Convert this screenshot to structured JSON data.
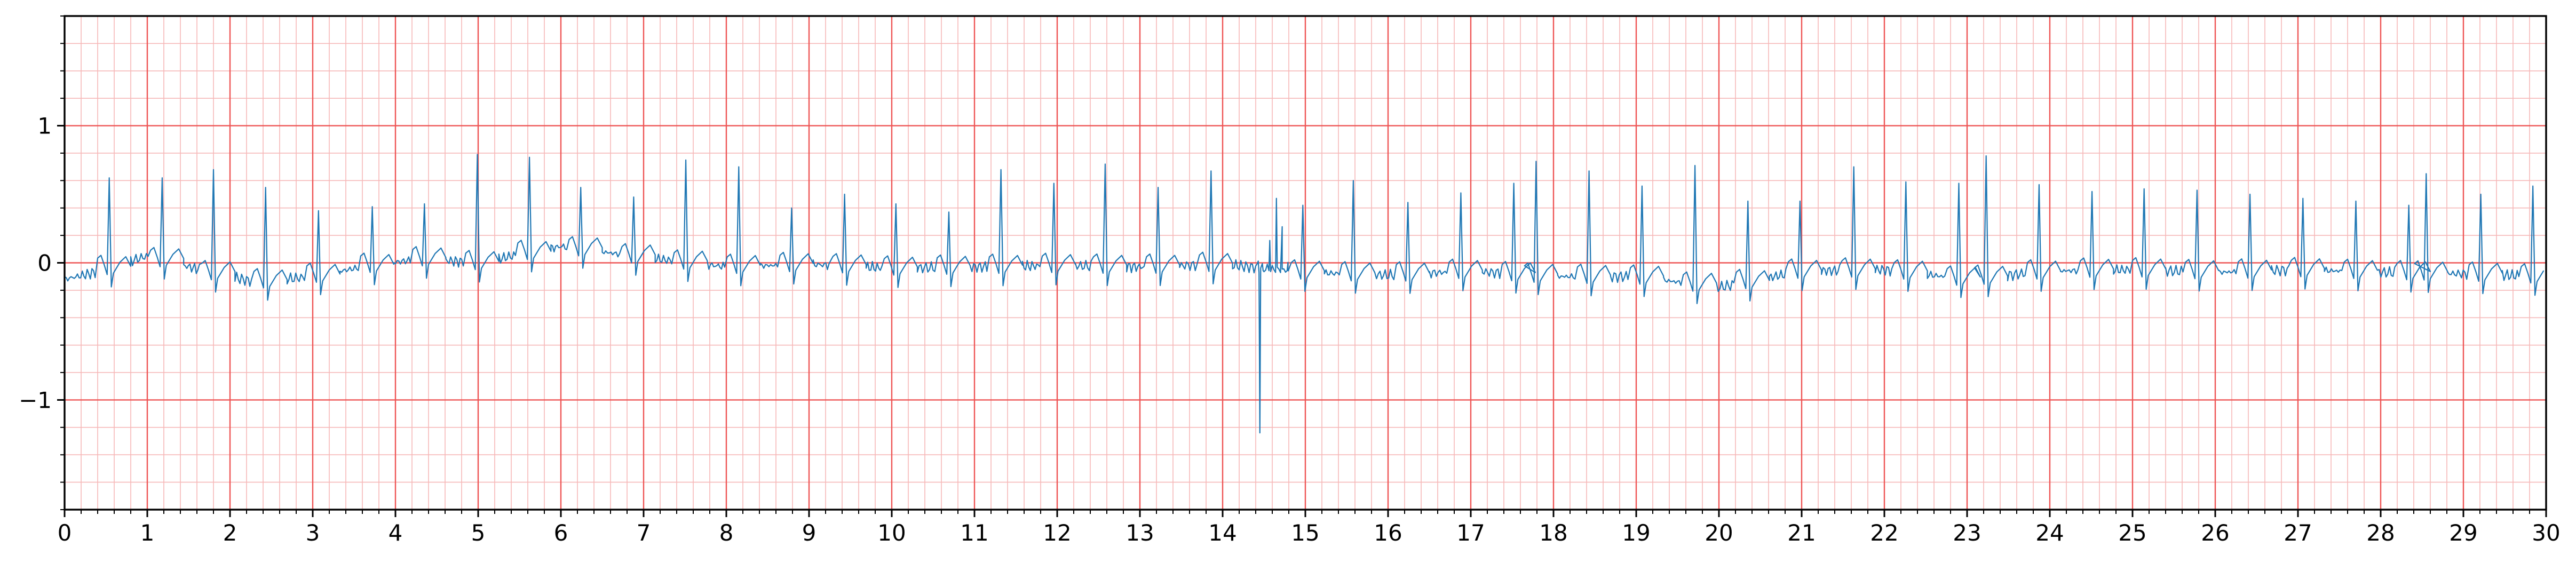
{
  "chart_data": {
    "type": "line",
    "title": "",
    "xlabel": "",
    "ylabel": "",
    "xlim": [
      0,
      30
    ],
    "ylim": [
      -1.8,
      1.8
    ],
    "xticks": [
      0,
      1,
      2,
      3,
      4,
      5,
      6,
      7,
      8,
      9,
      10,
      11,
      12,
      13,
      14,
      15,
      16,
      17,
      18,
      19,
      20,
      21,
      22,
      23,
      24,
      25,
      26,
      27,
      28,
      29,
      30
    ],
    "yticks": [
      -1,
      0,
      1
    ],
    "ytick_labels": [
      "−1",
      "0",
      "1"
    ],
    "grid": {
      "major_x_step": 1,
      "major_y_step": 1,
      "minor_x_step": 0.2,
      "minor_y_step": 0.2,
      "major_color": "#ee5555",
      "minor_color": "#f6b8b8"
    },
    "line_color": "#1f77b4",
    "series": [
      {
        "baseline": [
          [
            0.0,
            -0.12
          ],
          [
            0.3,
            -0.08
          ],
          [
            1.0,
            0.05
          ],
          [
            1.7,
            -0.06
          ],
          [
            2.3,
            -0.14
          ],
          [
            3.0,
            -0.1
          ],
          [
            3.6,
            -0.03
          ],
          [
            4.3,
            0.03
          ],
          [
            5.0,
            0.0
          ],
          [
            6.0,
            0.12
          ],
          [
            7.0,
            0.04
          ],
          [
            8.0,
            -0.03
          ],
          [
            9.0,
            -0.01
          ],
          [
            10.0,
            -0.04
          ],
          [
            11.0,
            -0.03
          ],
          [
            12.0,
            -0.02
          ],
          [
            13.0,
            -0.03
          ],
          [
            14.0,
            -0.01
          ],
          [
            15.0,
            -0.07
          ],
          [
            16.0,
            -0.09
          ],
          [
            17.0,
            -0.06
          ],
          [
            18.0,
            -0.1
          ],
          [
            19.0,
            -0.1
          ],
          [
            20.0,
            -0.18
          ],
          [
            21.0,
            -0.06
          ],
          [
            22.0,
            -0.05
          ],
          [
            23.0,
            -0.12
          ],
          [
            24.0,
            -0.06
          ],
          [
            25.0,
            -0.05
          ],
          [
            26.0,
            -0.07
          ],
          [
            27.0,
            -0.05
          ],
          [
            28.0,
            -0.07
          ],
          [
            29.0,
            -0.08
          ],
          [
            30.0,
            -0.1
          ]
        ],
        "r_peaks": [
          [
            0.54,
            0.62
          ],
          [
            1.18,
            0.62
          ],
          [
            1.8,
            0.68
          ],
          [
            2.43,
            0.55
          ],
          [
            3.07,
            0.38
          ],
          [
            3.72,
            0.41
          ],
          [
            4.35,
            0.43
          ],
          [
            4.99,
            0.79
          ],
          [
            5.62,
            0.77
          ],
          [
            6.24,
            0.55
          ],
          [
            6.88,
            0.48
          ],
          [
            7.51,
            0.75
          ],
          [
            8.15,
            0.7
          ],
          [
            8.79,
            0.4
          ],
          [
            9.43,
            0.5
          ],
          [
            10.05,
            0.43
          ],
          [
            10.69,
            0.37
          ],
          [
            11.32,
            0.68
          ],
          [
            11.96,
            0.58
          ],
          [
            12.58,
            0.72
          ],
          [
            13.22,
            0.55
          ],
          [
            13.86,
            0.67
          ],
          [
            14.97,
            0.42
          ],
          [
            15.58,
            0.6
          ],
          [
            16.24,
            0.44
          ],
          [
            16.88,
            0.51
          ],
          [
            17.52,
            0.58
          ],
          [
            17.79,
            0.74
          ],
          [
            18.43,
            0.67
          ],
          [
            19.07,
            0.56
          ],
          [
            19.71,
            0.71
          ],
          [
            20.35,
            0.45
          ],
          [
            20.98,
            0.45
          ],
          [
            21.63,
            0.7
          ],
          [
            22.26,
            0.59
          ],
          [
            22.9,
            0.58
          ],
          [
            23.23,
            0.78
          ],
          [
            23.87,
            0.57
          ],
          [
            24.51,
            0.52
          ],
          [
            25.14,
            0.54
          ],
          [
            25.78,
            0.53
          ],
          [
            26.42,
            0.5
          ],
          [
            27.06,
            0.47
          ],
          [
            27.7,
            0.45
          ],
          [
            28.34,
            0.42
          ],
          [
            28.55,
            0.65
          ],
          [
            29.21,
            0.5
          ],
          [
            29.84,
            0.56
          ]
        ],
        "ectopic_beat": {
          "x": 14.45,
          "min": -1.24,
          "t_wave_peak": 0.47
        }
      }
    ]
  }
}
